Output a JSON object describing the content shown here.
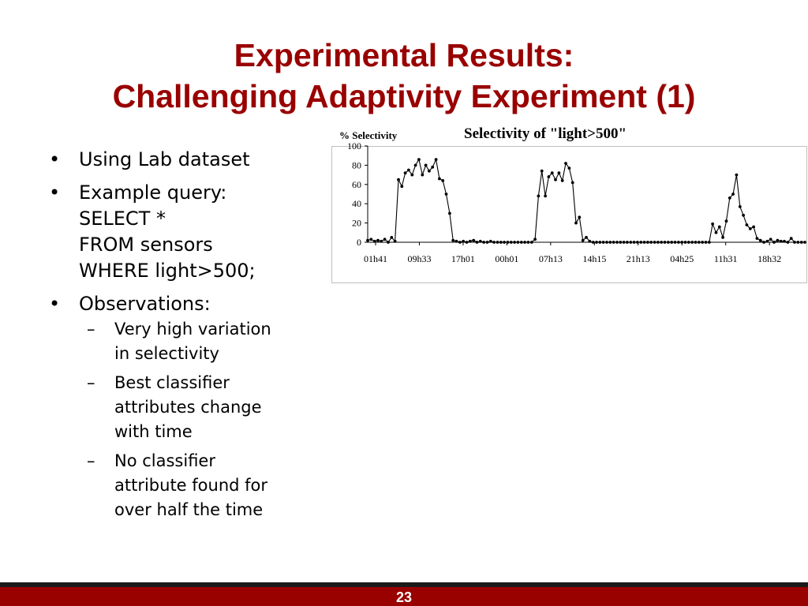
{
  "slide": {
    "title_line1": "Experimental Results:",
    "title_line2": "Challenging Adaptivity Experiment (1)",
    "page_number": "23"
  },
  "bullets": [
    {
      "lines": [
        "Using Lab dataset"
      ]
    },
    {
      "lines": [
        "Example query:",
        "SELECT *",
        "FROM sensors",
        "WHERE light>500;"
      ]
    },
    {
      "lines": [
        "Observations:"
      ],
      "sub": [
        {
          "lines": [
            "Very high variation",
            "in selectivity"
          ]
        },
        {
          "lines": [
            "Best classifier",
            "attributes change",
            "with time"
          ]
        },
        {
          "lines": [
            "No classifier",
            "attribute found for",
            "over half the time"
          ]
        }
      ]
    }
  ],
  "colors": {
    "title": "#990000",
    "footer": "#990000",
    "footer_line": "#1a1a1a"
  },
  "chart_data": {
    "type": "line",
    "title": "Selectivity of \"light>500\"",
    "ylabel": "% Selectivity",
    "xlabel": "",
    "ylim": [
      0,
      100
    ],
    "yticks": [
      0,
      20,
      40,
      60,
      80,
      100
    ],
    "grid": false,
    "legend": "none",
    "x_tick_labels": [
      "01h41",
      "09h33",
      "17h01",
      "00h01",
      "07h13",
      "14h15",
      "21h13",
      "04h25",
      "11h31",
      "18h32"
    ],
    "values": [
      2,
      3,
      1,
      2,
      1,
      3,
      0,
      5,
      1,
      65,
      58,
      72,
      75,
      70,
      80,
      86,
      70,
      80,
      74,
      78,
      86,
      66,
      64,
      50,
      30,
      2,
      1,
      0,
      1,
      0,
      1,
      2,
      0,
      1,
      0,
      0,
      1,
      0,
      0,
      0,
      0,
      0,
      0,
      0,
      0,
      0,
      0,
      0,
      0,
      3,
      48,
      74,
      48,
      68,
      72,
      65,
      72,
      64,
      82,
      77,
      62,
      20,
      26,
      2,
      5,
      1,
      0,
      0,
      0,
      0,
      0,
      0,
      0,
      0,
      0,
      0,
      0,
      0,
      0,
      0,
      0,
      0,
      0,
      0,
      0,
      0,
      0,
      0,
      0,
      0,
      0,
      0,
      0,
      0,
      0,
      0,
      0,
      0,
      0,
      0,
      0,
      19,
      10,
      16,
      5,
      22,
      46,
      50,
      70,
      37,
      28,
      18,
      14,
      16,
      4,
      2,
      0,
      1,
      3,
      0,
      2,
      1,
      1,
      0,
      4,
      0,
      0,
      0,
      0
    ]
  }
}
